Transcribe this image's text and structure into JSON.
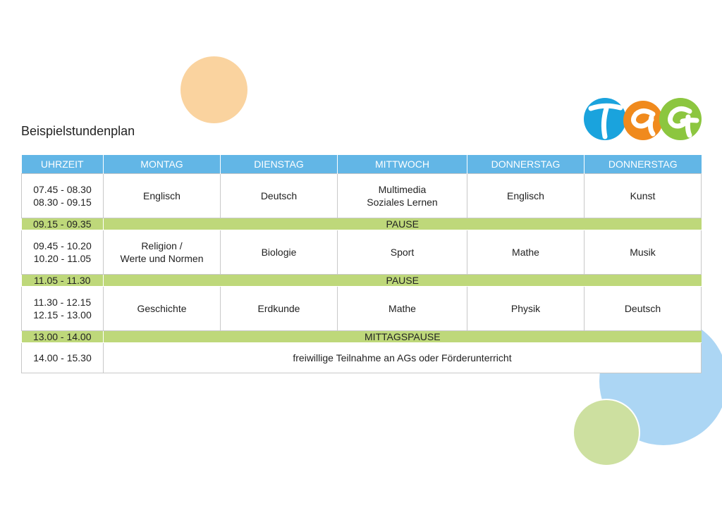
{
  "title": "Beispielstundenplan",
  "colors": {
    "header_blue": "#62b6e6",
    "break_green": "#bed87a",
    "circle_orange": "#fad39f",
    "circle_blue": "#acd6f4",
    "circle_green": "#cde0a0",
    "logo_blue": "#1aa3dd",
    "logo_orange": "#f08a1d",
    "logo_green": "#8cc63f"
  },
  "logo": {
    "text": "TAG"
  },
  "table": {
    "headers": [
      "UHRZEIT",
      "MONTAG",
      "DIENSTAG",
      "MITTWOCH",
      "DONNERSTAG",
      "DONNERSTAG"
    ],
    "block1": {
      "time": [
        "07.45 - 08.30",
        "08.30 - 09.15"
      ],
      "subjects": [
        [
          "Englisch"
        ],
        [
          "Deutsch"
        ],
        [
          "Multimedia",
          "Soziales Lernen"
        ],
        [
          "Englisch"
        ],
        [
          "Kunst"
        ]
      ]
    },
    "break1": {
      "time": "09.15 - 09.35",
      "label": "PAUSE"
    },
    "block2": {
      "time": [
        "09.45 - 10.20",
        "10.20 - 11.05"
      ],
      "subjects": [
        [
          "Religion /",
          "Werte und Normen"
        ],
        [
          "Biologie"
        ],
        [
          "Sport"
        ],
        [
          "Mathe"
        ],
        [
          "Musik"
        ]
      ]
    },
    "break2": {
      "time": "11.05 - 11.30",
      "label": "PAUSE"
    },
    "block3": {
      "time": [
        "11.30 - 12.15",
        "12.15 - 13.00"
      ],
      "subjects": [
        [
          "Geschichte"
        ],
        [
          "Erdkunde"
        ],
        [
          "Mathe"
        ],
        [
          "Physik"
        ],
        [
          "Deutsch"
        ]
      ]
    },
    "break3": {
      "time": "13.00 - 14.00",
      "label": "MITTAGSPAUSE"
    },
    "afternoon": {
      "time": "14.00 - 15.30",
      "label": "freiwillige Teilnahme an AGs oder Förderunterricht"
    }
  }
}
